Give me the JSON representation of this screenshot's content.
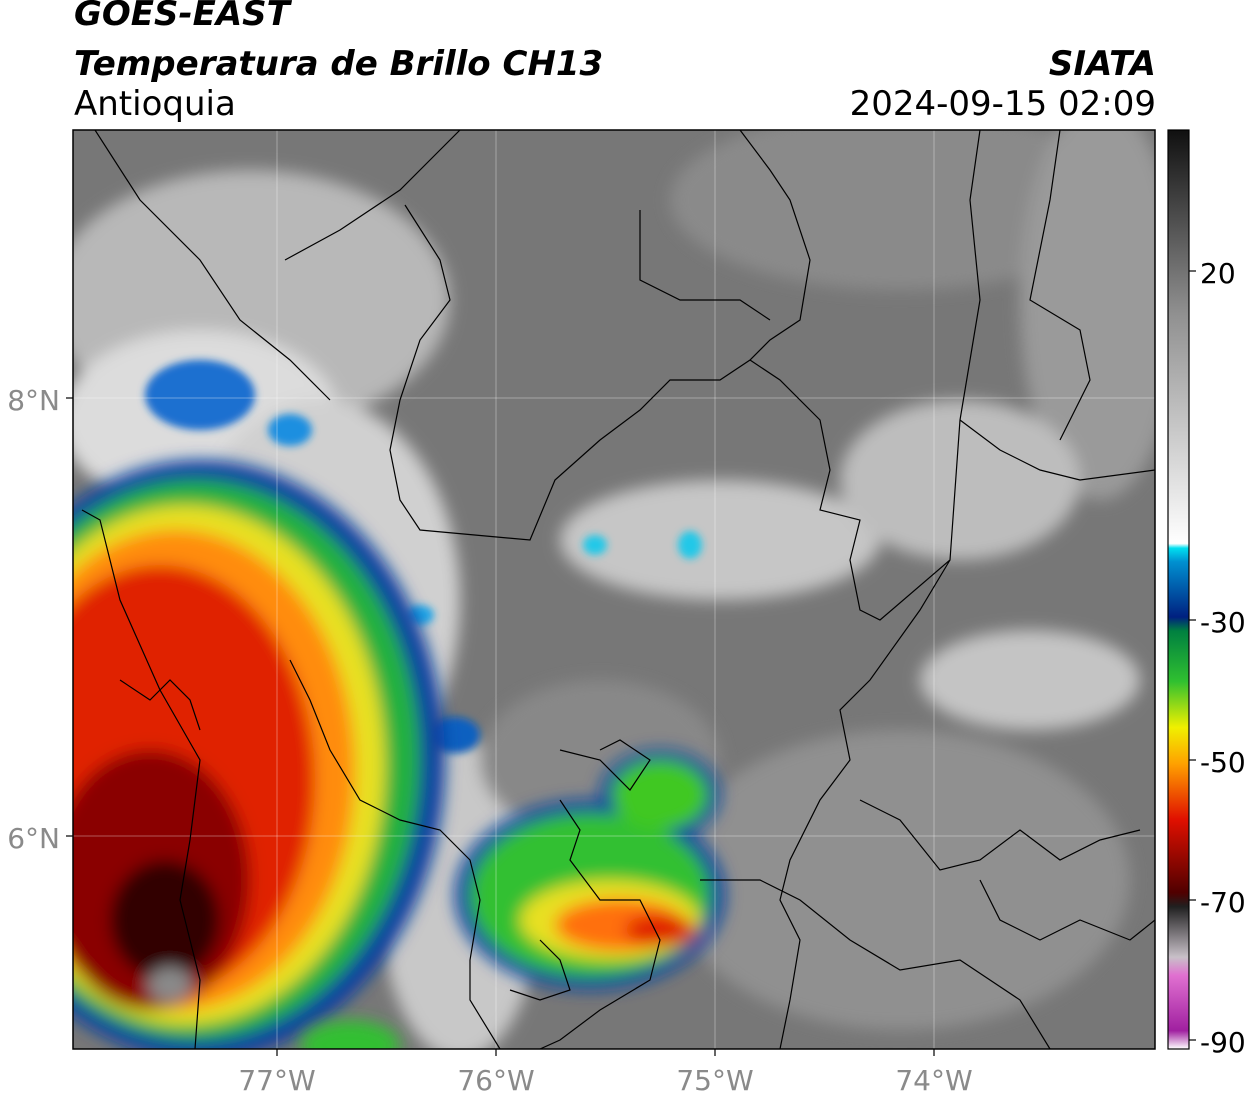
{
  "header": {
    "satellite": "GOES-EAST",
    "product": "Temperatura de Brillo CH13",
    "region": "Antioquia",
    "organization": "SIATA",
    "timestamp": "2024-09-15 02:09"
  },
  "map": {
    "lat_labels": [
      "8°N",
      "6°N"
    ],
    "lon_labels": [
      "77°W",
      "76°W",
      "75°W",
      "74°W"
    ],
    "lat_values": [
      8,
      6
    ],
    "lon_values": [
      -77,
      -76,
      -75,
      -74
    ],
    "extent": {
      "lon_min": -77.95,
      "lon_max": -73.05,
      "lat_min": 5.05,
      "lat_max": 9.25
    }
  },
  "colorbar": {
    "tick_labels": [
      "20",
      "-30",
      "-50",
      "-70",
      "-90"
    ],
    "tick_values": [
      20,
      -30,
      -50,
      -70,
      -90
    ],
    "range": [
      -90,
      40
    ],
    "colors": {
      "warm_gray": "#6e6e6e",
      "white": "#f2f2f2",
      "cyan": "#00c8e6",
      "blue": "#003c9c",
      "green": "#20b020",
      "yellow": "#f0f000",
      "orange": "#ff8000",
      "red": "#e00000",
      "dark_red": "#600000",
      "black": "#000000",
      "magenta": "#c040c0"
    }
  }
}
